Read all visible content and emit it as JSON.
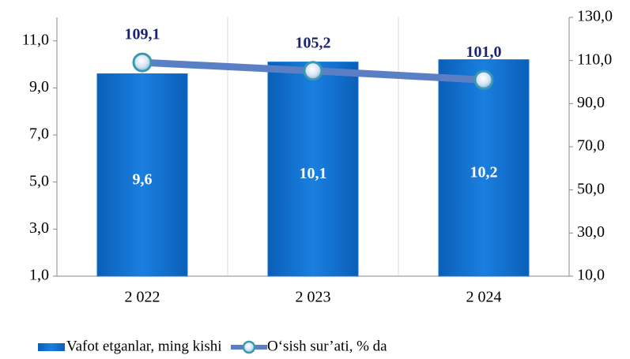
{
  "chart_data": {
    "type": "bar-line",
    "categories": [
      "2 022",
      "2 023",
      "2 024"
    ],
    "series": [
      {
        "name": "Vafot etganlar, ming kishi",
        "type": "bar",
        "color": "#1170d0",
        "values": [
          9.6,
          10.1,
          10.2
        ],
        "value_labels": [
          "9,6",
          "10,1",
          "10,2"
        ]
      },
      {
        "name": "O‘sish sur’ati, % da",
        "type": "line",
        "axis": "y2",
        "color": "#5b7fc4",
        "values": [
          109.1,
          105.2,
          101.0
        ],
        "value_labels": [
          "109,1",
          "105,2",
          "101,0"
        ]
      }
    ],
    "ylim": [
      1,
      12
    ],
    "yticks": [
      {
        "value": 1,
        "label": "1,0"
      },
      {
        "value": 3,
        "label": "3,0"
      },
      {
        "value": 5,
        "label": "5,0"
      },
      {
        "value": 7,
        "label": "7,0"
      },
      {
        "value": 9,
        "label": "9,0"
      },
      {
        "value": 11,
        "label": "11,0"
      }
    ],
    "y2lim": [
      10,
      130
    ],
    "y2ticks": [
      {
        "value": 10,
        "label": "10,0"
      },
      {
        "value": 30,
        "label": "30,0"
      },
      {
        "value": 50,
        "label": "50,0"
      },
      {
        "value": 70,
        "label": "70,0"
      },
      {
        "value": 90,
        "label": "90,0"
      },
      {
        "value": 110,
        "label": "110,0"
      },
      {
        "value": 130,
        "label": "130,0"
      }
    ],
    "legend": "bottom-left"
  }
}
